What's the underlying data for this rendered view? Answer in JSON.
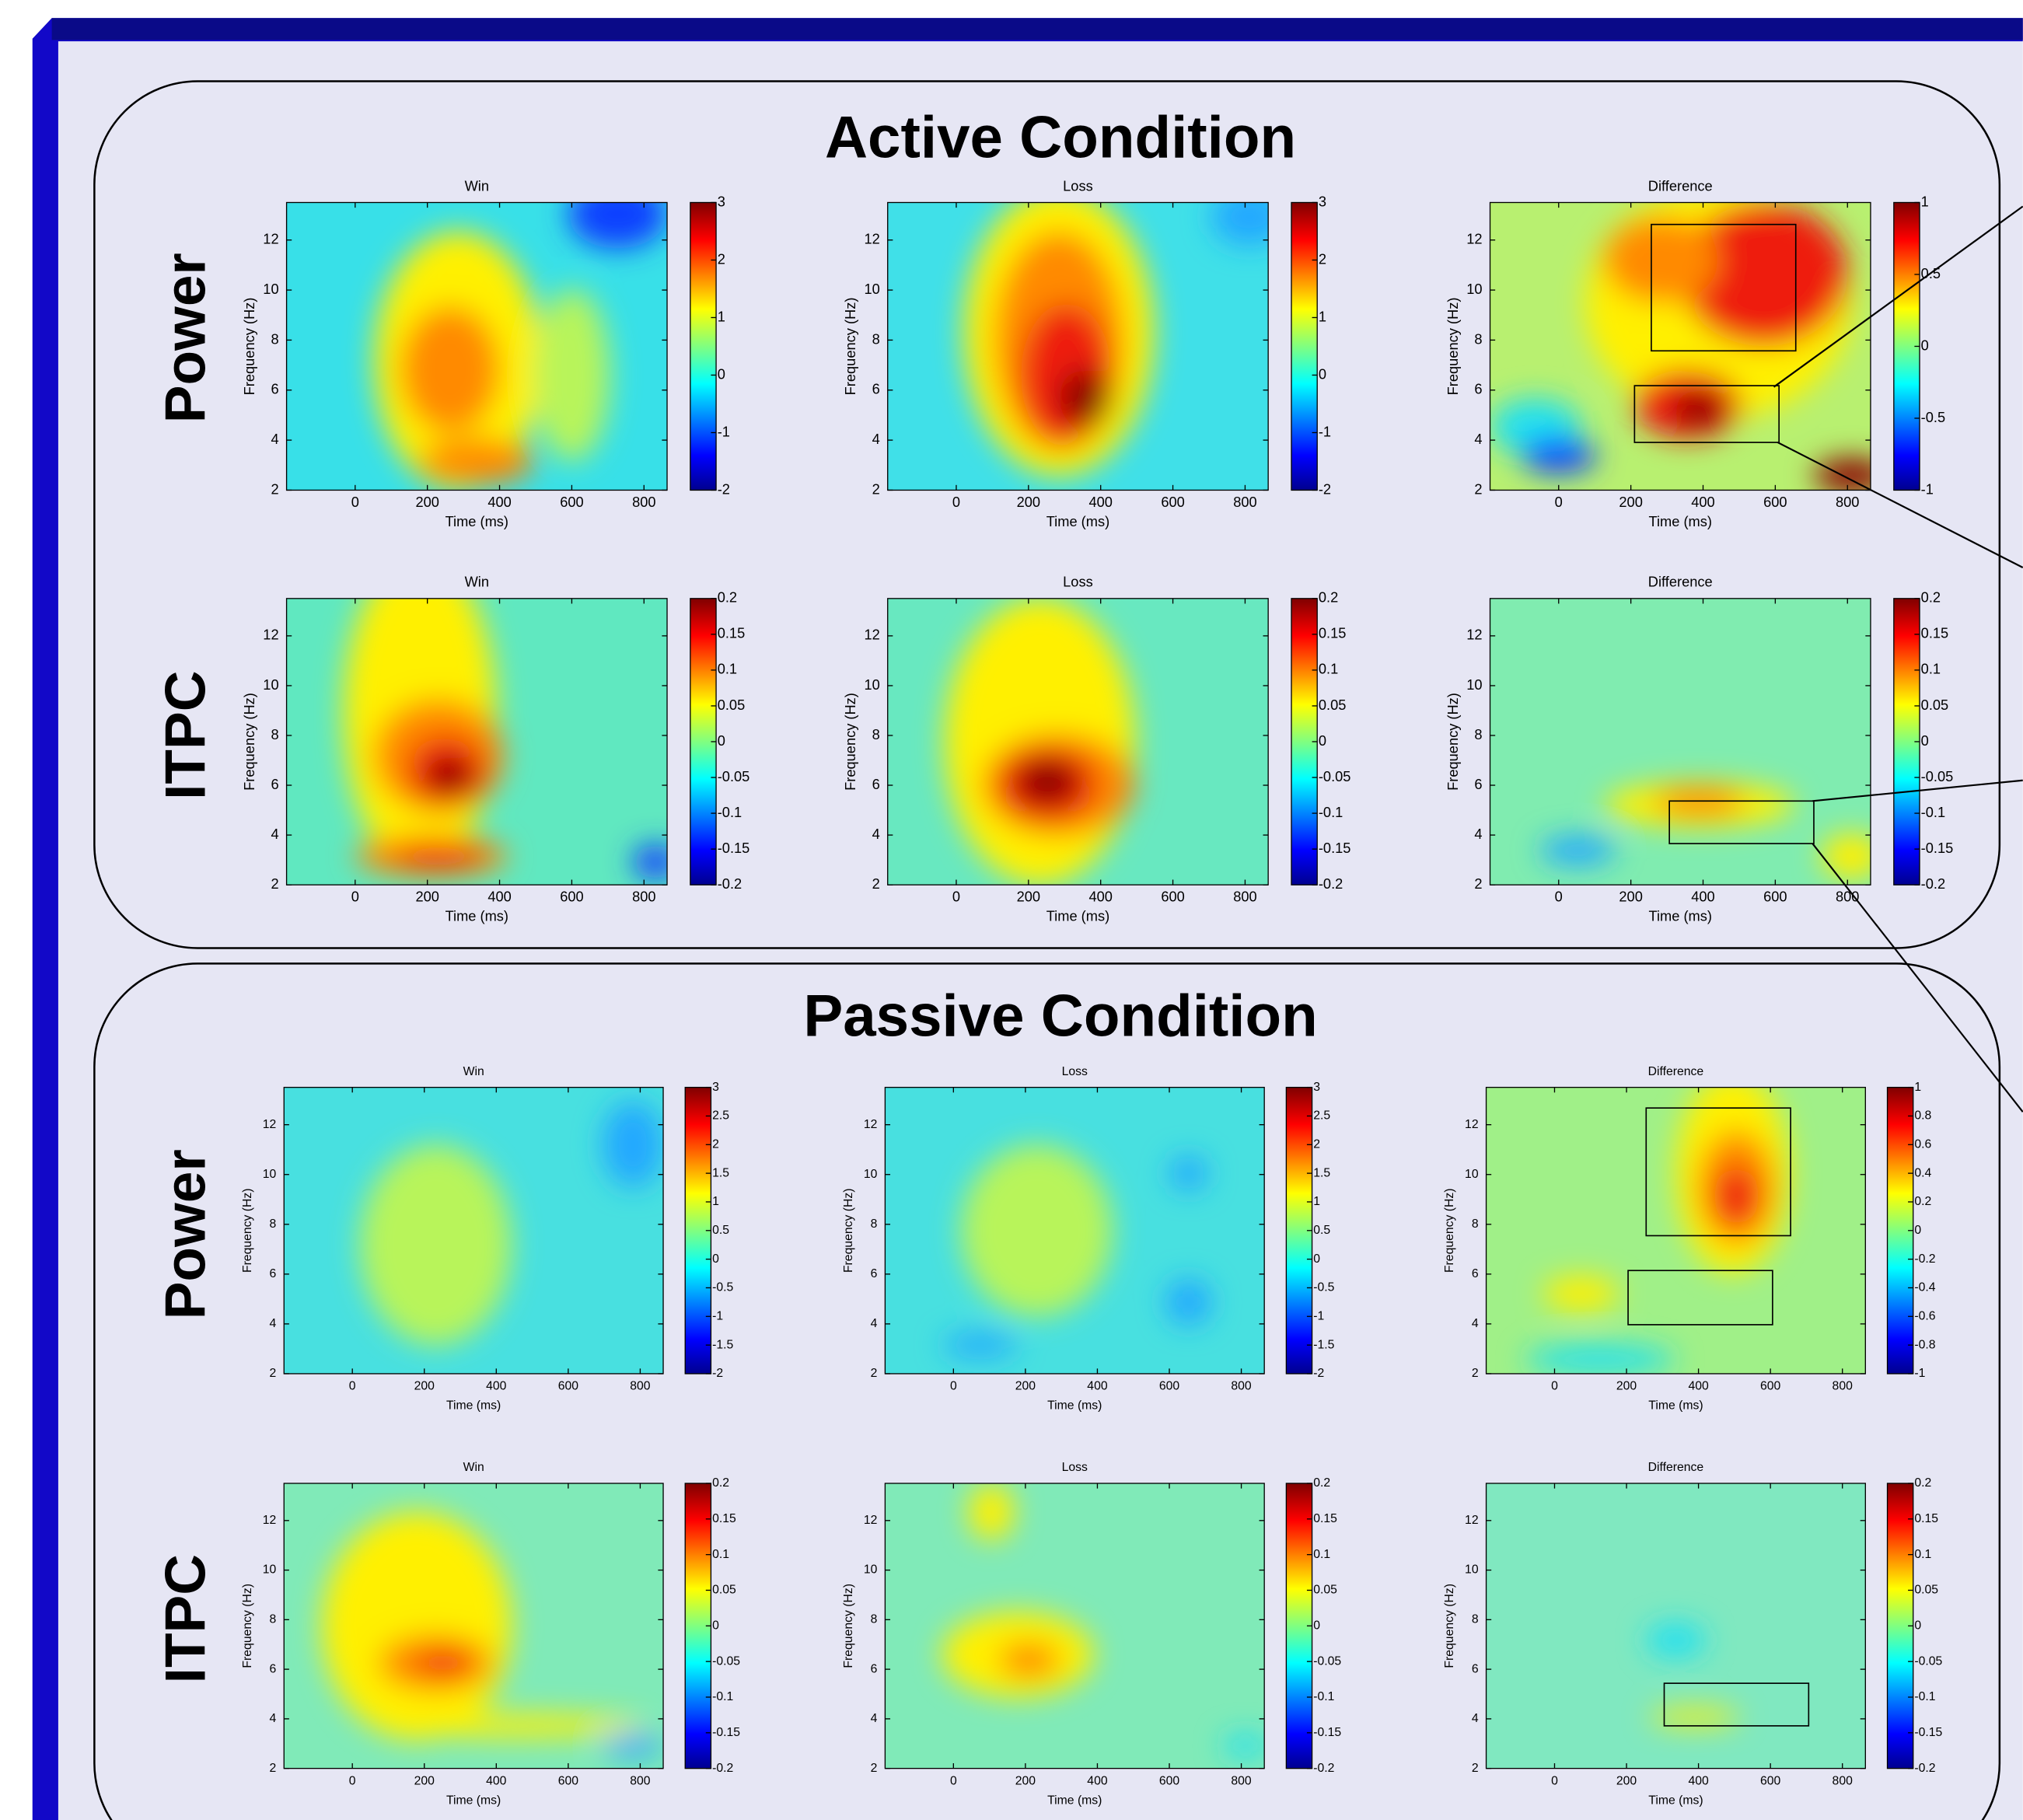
{
  "sections": [
    {
      "title": "Active Condition",
      "rows": [
        {
          "label": "Power",
          "panels": [
            {
              "title": "Win",
              "colorbar_ticks": [
                3,
                2,
                1,
                0,
                -1,
                -2
              ]
            },
            {
              "title": "Loss",
              "colorbar_ticks": [
                3,
                2,
                1,
                0,
                -1,
                -2
              ]
            },
            {
              "title": "Difference",
              "colorbar_ticks": [
                1,
                0.5,
                0,
                -0.5,
                -1
              ]
            }
          ]
        },
        {
          "label": "ITPC",
          "panels": [
            {
              "title": "Win",
              "colorbar_ticks": [
                0.2,
                0.15,
                0.1,
                0.05,
                0,
                -0.05,
                -0.1,
                -0.15,
                -0.2
              ]
            },
            {
              "title": "Loss",
              "colorbar_ticks": [
                0.2,
                0.15,
                0.1,
                0.05,
                0,
                -0.05,
                -0.1,
                -0.15,
                -0.2
              ]
            },
            {
              "title": "Difference",
              "colorbar_ticks": [
                0.2,
                0.15,
                0.1,
                0.05,
                0,
                -0.05,
                -0.1,
                -0.15,
                -0.2
              ]
            }
          ]
        }
      ]
    },
    {
      "title": "Passive Condition",
      "rows": [
        {
          "label": "Power",
          "panels": [
            {
              "title": "Win",
              "colorbar_ticks": [
                3,
                2.5,
                2,
                1.5,
                1,
                0.5,
                0,
                -0.5,
                -1,
                -1.5,
                -2
              ]
            },
            {
              "title": "Loss",
              "colorbar_ticks": [
                3,
                2.5,
                2,
                1.5,
                1,
                0.5,
                0,
                -0.5,
                -1,
                -1.5,
                -2
              ]
            },
            {
              "title": "Difference",
              "colorbar_ticks": [
                1,
                0.8,
                0.6,
                0.4,
                0.2,
                0,
                -0.2,
                -0.4,
                -0.6,
                -0.8,
                -1
              ]
            }
          ]
        },
        {
          "label": "ITPC",
          "panels": [
            {
              "title": "Win",
              "colorbar_ticks": [
                0.2,
                0.15,
                0.1,
                0.05,
                0,
                -0.05,
                -0.1,
                -0.15,
                -0.2
              ]
            },
            {
              "title": "Loss",
              "colorbar_ticks": [
                0.2,
                0.15,
                0.1,
                0.05,
                0,
                -0.05,
                -0.1,
                -0.15,
                -0.2
              ]
            },
            {
              "title": "Difference",
              "colorbar_ticks": [
                0.2,
                0.15,
                0.1,
                0.05,
                0,
                -0.05,
                -0.1,
                -0.15,
                -0.2
              ]
            }
          ]
        }
      ]
    }
  ],
  "axes": {
    "xlabel": "Time (ms)",
    "ylabel": "Frequency (Hz)",
    "xticks": [
      0,
      200,
      400,
      600,
      800
    ],
    "yticks": [
      2,
      4,
      6,
      8,
      10,
      12
    ],
    "xlim": [
      -190,
      864
    ],
    "ylim": [
      2,
      13.5
    ]
  }
}
